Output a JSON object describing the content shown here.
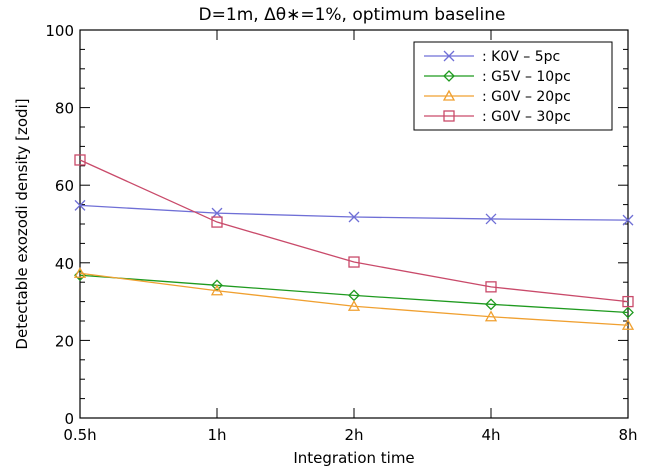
{
  "chart_data": {
    "type": "line",
    "title": "D=1m, Δθ∗=1%, optimum baseline",
    "xlabel": "Integration time",
    "ylabel": "Detectable exozodi density [zodi]",
    "categories": [
      "0.5h",
      "1h",
      "2h",
      "4h",
      "8h"
    ],
    "ylim": [
      0,
      100
    ],
    "yticks": [
      0,
      20,
      40,
      60,
      80,
      100
    ],
    "grid": false,
    "legend_position": "top-right",
    "series": [
      {
        "name": ": K0V – 5pc",
        "color": "#6f6fd6",
        "marker": "x",
        "values": [
          54.8,
          52.8,
          51.8,
          51.3,
          51.0
        ]
      },
      {
        "name": ": G5V – 10pc",
        "color": "#1f9a1f",
        "marker": "diamond",
        "values": [
          36.8,
          34.2,
          31.6,
          29.3,
          27.2
        ]
      },
      {
        "name": ": G0V – 20pc",
        "color": "#f0a030",
        "marker": "triangle",
        "values": [
          37.3,
          32.8,
          28.8,
          26.1,
          23.9
        ]
      },
      {
        "name": ": G0V – 30pc",
        "color": "#c94a6a",
        "marker": "square",
        "values": [
          66.5,
          50.5,
          40.2,
          33.8,
          30.0
        ]
      }
    ]
  }
}
